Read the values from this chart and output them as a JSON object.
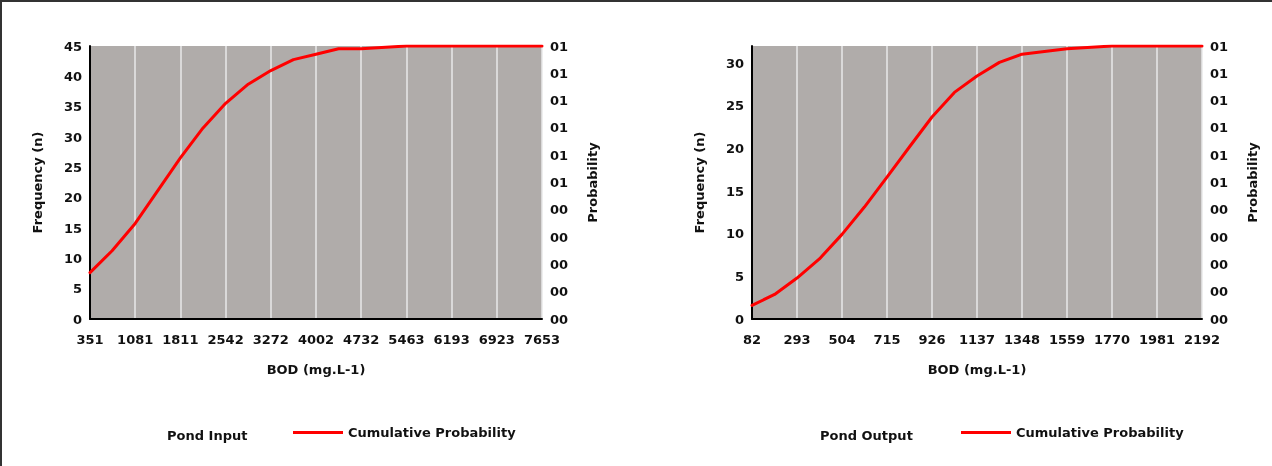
{
  "chart_data": [
    {
      "type": "line",
      "xlabel": "BOD (mg.L-1)",
      "ylabel": "Frequency (n)",
      "y2label": "Probability",
      "legend_title": "Pond Input",
      "legend": "bottom",
      "grid": "x",
      "marker": "none",
      "line_style": "solid",
      "xlim": [
        351,
        7653
      ],
      "xticks": [
        351,
        1081,
        1811,
        2542,
        3272,
        4002,
        4732,
        5463,
        6193,
        6923,
        7653
      ],
      "ylim": [
        0,
        45
      ],
      "yticks": [
        0,
        5,
        10,
        15,
        20,
        25,
        30,
        35,
        40,
        45
      ],
      "y2lim": [
        0,
        1
      ],
      "y2ticks": [
        {
          "value": 0,
          "label": "00"
        },
        {
          "value": 0.1,
          "label": "00"
        },
        {
          "value": 0.2,
          "label": "00"
        },
        {
          "value": 0.3,
          "label": "00"
        },
        {
          "value": 0.4,
          "label": "00"
        },
        {
          "value": 0.5,
          "label": "01"
        },
        {
          "value": 0.6,
          "label": "01"
        },
        {
          "value": 0.7,
          "label": "01"
        },
        {
          "value": 0.8,
          "label": "01"
        },
        {
          "value": 0.9,
          "label": "01"
        },
        {
          "value": 1,
          "label": "01"
        }
      ],
      "series": [
        {
          "name": "Cumulative Probability",
          "color": "#ff0000",
          "axis": "y2",
          "x": [
            351,
            708,
            1081,
            1446,
            1811,
            2177,
            2542,
            2907,
            3272,
            3637,
            4002,
            4367,
            4732,
            5463,
            6193,
            6923,
            7653
          ],
          "values": [
            0.17,
            0.25,
            0.35,
            0.47,
            0.59,
            0.7,
            0.79,
            0.86,
            0.91,
            0.95,
            0.97,
            0.99,
            0.99,
            1,
            1,
            1,
            1
          ]
        }
      ]
    },
    {
      "type": "line",
      "xlabel": "BOD (mg.L-1)",
      "ylabel": "Frequency (n)",
      "y2label": "Probability",
      "legend_title": "Pond Output",
      "legend": "bottom",
      "grid": "x",
      "marker": "none",
      "line_style": "solid",
      "xlim": [
        82,
        2192
      ],
      "xticks": [
        82,
        293,
        504,
        715,
        926,
        1137,
        1348,
        1559,
        1770,
        1981,
        2192
      ],
      "ylim": [
        0,
        32
      ],
      "yticks": [
        0,
        5,
        10,
        15,
        20,
        25,
        30
      ],
      "y2lim": [
        0,
        1
      ],
      "y2ticks": [
        {
          "value": 0,
          "label": "00"
        },
        {
          "value": 0.1,
          "label": "00"
        },
        {
          "value": 0.2,
          "label": "00"
        },
        {
          "value": 0.3,
          "label": "00"
        },
        {
          "value": 0.4,
          "label": "00"
        },
        {
          "value": 0.5,
          "label": "01"
        },
        {
          "value": 0.6,
          "label": "01"
        },
        {
          "value": 0.7,
          "label": "01"
        },
        {
          "value": 0.8,
          "label": "01"
        },
        {
          "value": 0.9,
          "label": "01"
        },
        {
          "value": 1,
          "label": "01"
        }
      ],
      "series": [
        {
          "name": "Cumulative Probability",
          "color": "#ff0000",
          "axis": "y2",
          "x": [
            82,
            188,
            293,
            398,
            504,
            609,
            715,
            820,
            926,
            1031,
            1137,
            1242,
            1348,
            1453,
            1559,
            1770,
            1981,
            2192
          ],
          "values": [
            0.05,
            0.09,
            0.15,
            0.22,
            0.31,
            0.41,
            0.52,
            0.63,
            0.74,
            0.83,
            0.89,
            0.94,
            0.97,
            0.98,
            0.99,
            1,
            1,
            1
          ]
        }
      ]
    }
  ]
}
